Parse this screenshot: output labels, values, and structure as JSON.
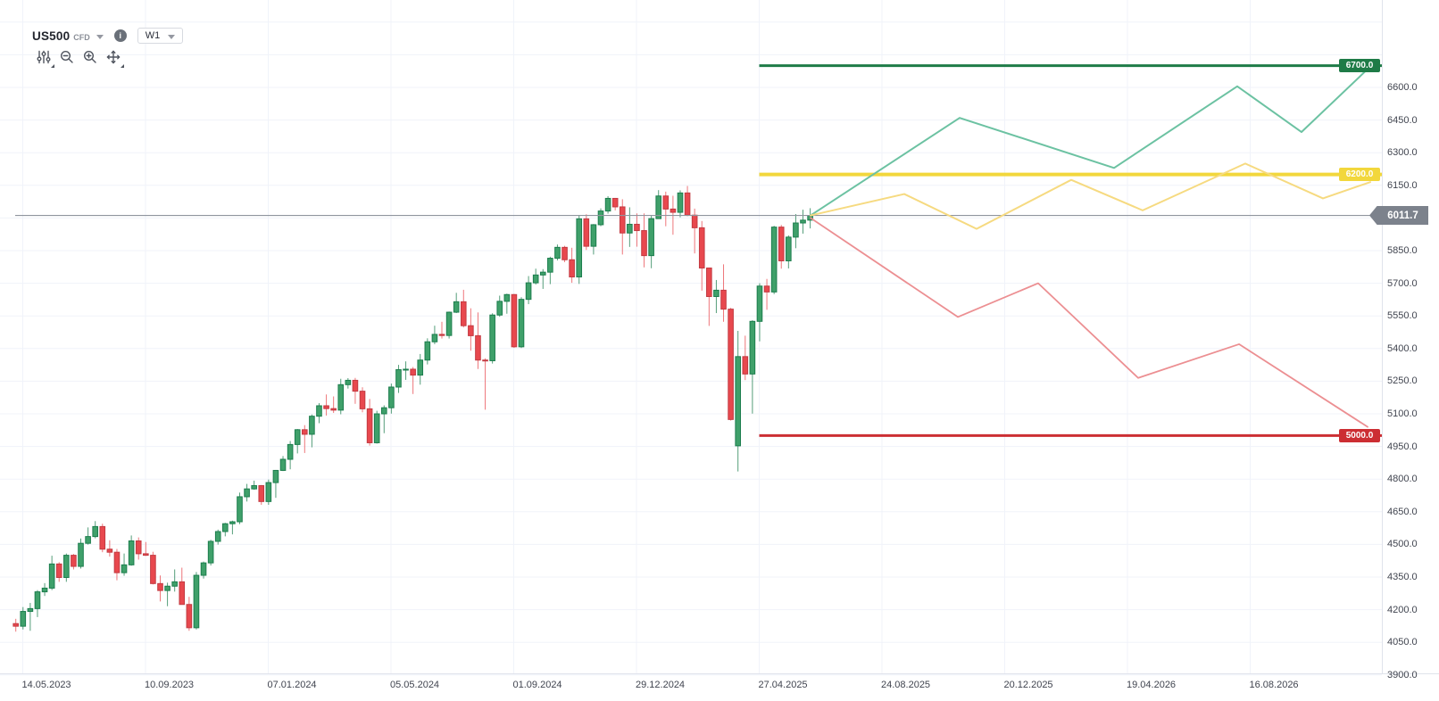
{
  "header": {
    "symbol": "US500",
    "market_type": "CFD",
    "info_icon": "i",
    "timeframe": "W1",
    "tools": [
      "chart-settings",
      "zoom-out",
      "zoom-in",
      "pan"
    ]
  },
  "chart_data": {
    "type": "candlestick",
    "symbol": "US500",
    "timeframe": "W1",
    "current_price": {
      "value": 6011.7,
      "label": "6011.7"
    },
    "price_axis": {
      "step": 150,
      "ticks": [
        6600,
        6450,
        6300,
        6150,
        5850,
        5700,
        5550,
        5400,
        5250,
        5100,
        4950,
        4800,
        4650,
        4500,
        4350,
        4200,
        4050,
        3900
      ]
    },
    "time_axis": {
      "labels": [
        "14.05.2023",
        "10.09.2023",
        "07.01.2024",
        "05.05.2024",
        "01.09.2024",
        "29.12.2024",
        "27.04.2025",
        "24.08.2025",
        "20.12.2025",
        "19.04.2026",
        "16.08.2026"
      ]
    },
    "horizontal_levels": [
      {
        "label": "6700.0",
        "price": 6700,
        "color": "#1e7b47",
        "thickness": 3
      },
      {
        "label": "6200.0",
        "price": 6200,
        "color": "#f2d73c",
        "thickness": 4
      },
      {
        "label": "5000.0",
        "price": 5000,
        "color": "#cc2e33",
        "thickness": 3
      }
    ],
    "projections": [
      {
        "name": "bullish-scenario",
        "color": "#6cc2a2",
        "width": 2,
        "points": [
          [
            908,
            6011.7
          ],
          [
            1075,
            6460
          ],
          [
            1248,
            6230
          ],
          [
            1386,
            6605
          ],
          [
            1458,
            6395
          ],
          [
            1540,
            6715
          ]
        ]
      },
      {
        "name": "sideways-scenario",
        "color": "#f6da80",
        "width": 2,
        "points": [
          [
            908,
            6011.7
          ],
          [
            1013,
            6110
          ],
          [
            1094,
            5950
          ],
          [
            1200,
            6175
          ],
          [
            1280,
            6035
          ],
          [
            1395,
            6250
          ],
          [
            1482,
            6090
          ],
          [
            1535,
            6165
          ]
        ]
      },
      {
        "name": "bearish-scenario",
        "color": "#ec8f92",
        "width": 1.8,
        "points": [
          [
            908,
            6000
          ],
          [
            1073,
            5545
          ],
          [
            1163,
            5700
          ],
          [
            1275,
            5265
          ],
          [
            1388,
            5420
          ],
          [
            1532,
            5040
          ]
        ]
      }
    ],
    "candles": {
      "start_week": "2023-05-08",
      "interval": "1W",
      "ohlc": [
        [
          4136,
          4158,
          4099,
          4124
        ],
        [
          4124,
          4212,
          4109,
          4192
        ],
        [
          4192,
          4231,
          4103,
          4205
        ],
        [
          4205,
          4290,
          4166,
          4282
        ],
        [
          4282,
          4322,
          4263,
          4299
        ],
        [
          4299,
          4448,
          4290,
          4410
        ],
        [
          4410,
          4418,
          4328,
          4348
        ],
        [
          4348,
          4458,
          4328,
          4450
        ],
        [
          4450,
          4456,
          4385,
          4399
        ],
        [
          4399,
          4527,
          4389,
          4505
        ],
        [
          4505,
          4578,
          4499,
          4536
        ],
        [
          4536,
          4607,
          4528,
          4582
        ],
        [
          4582,
          4595,
          4464,
          4478
        ],
        [
          4478,
          4519,
          4444,
          4464
        ],
        [
          4464,
          4479,
          4335,
          4370
        ],
        [
          4370,
          4458,
          4356,
          4406
        ],
        [
          4406,
          4541,
          4402,
          4516
        ],
        [
          4516,
          4532,
          4430,
          4457
        ],
        [
          4457,
          4511,
          4447,
          4450
        ],
        [
          4450,
          4466,
          4316,
          4320
        ],
        [
          4320,
          4357,
          4238,
          4288
        ],
        [
          4288,
          4324,
          4216,
          4308
        ],
        [
          4308,
          4385,
          4283,
          4328
        ],
        [
          4328,
          4393,
          4223,
          4224
        ],
        [
          4224,
          4259,
          4103,
          4117
        ],
        [
          4117,
          4373,
          4109,
          4358
        ],
        [
          4358,
          4421,
          4343,
          4415
        ],
        [
          4415,
          4521,
          4403,
          4514
        ],
        [
          4514,
          4568,
          4499,
          4559
        ],
        [
          4559,
          4599,
          4537,
          4595
        ],
        [
          4595,
          4609,
          4546,
          4604
        ],
        [
          4604,
          4738,
          4593,
          4719
        ],
        [
          4719,
          4778,
          4697,
          4755
        ],
        [
          4755,
          4793,
          4751,
          4770
        ],
        [
          4770,
          4773,
          4682,
          4697
        ],
        [
          4697,
          4798,
          4682,
          4784
        ],
        [
          4784,
          4842,
          4714,
          4840
        ],
        [
          4840,
          4906,
          4837,
          4891
        ],
        [
          4891,
          4975,
          4845,
          4959
        ],
        [
          4959,
          5030,
          4918,
          5027
        ],
        [
          5027,
          5048,
          4920,
          5006
        ],
        [
          5006,
          5097,
          4946,
          5089
        ],
        [
          5089,
          5149,
          5057,
          5137
        ],
        [
          5137,
          5189,
          5092,
          5124
        ],
        [
          5124,
          5180,
          5104,
          5117
        ],
        [
          5117,
          5261,
          5098,
          5234
        ],
        [
          5234,
          5264,
          5216,
          5254
        ],
        [
          5254,
          5265,
          5146,
          5204
        ],
        [
          5204,
          5222,
          5107,
          5123
        ],
        [
          5123,
          5168,
          4954,
          4967
        ],
        [
          4967,
          5114,
          4963,
          5100
        ],
        [
          5100,
          5139,
          5011,
          5128
        ],
        [
          5128,
          5239,
          5101,
          5223
        ],
        [
          5223,
          5325,
          5196,
          5303
        ],
        [
          5303,
          5341,
          5256,
          5305
        ],
        [
          5305,
          5315,
          5191,
          5278
        ],
        [
          5278,
          5375,
          5234,
          5347
        ],
        [
          5347,
          5447,
          5327,
          5431
        ],
        [
          5431,
          5505,
          5420,
          5465
        ],
        [
          5465,
          5523,
          5446,
          5460
        ],
        [
          5460,
          5570,
          5446,
          5567
        ],
        [
          5567,
          5656,
          5563,
          5615
        ],
        [
          5615,
          5670,
          5497,
          5505
        ],
        [
          5505,
          5585,
          5390,
          5459
        ],
        [
          5459,
          5566,
          5306,
          5347
        ],
        [
          5347,
          5355,
          5119,
          5344
        ],
        [
          5344,
          5562,
          5331,
          5554
        ],
        [
          5554,
          5643,
          5546,
          5617
        ],
        [
          5617,
          5652,
          5560,
          5648
        ],
        [
          5648,
          5651,
          5403,
          5408
        ],
        [
          5408,
          5636,
          5402,
          5626
        ],
        [
          5626,
          5733,
          5604,
          5702
        ],
        [
          5702,
          5767,
          5694,
          5738
        ],
        [
          5738,
          5765,
          5674,
          5751
        ],
        [
          5751,
          5822,
          5696,
          5815
        ],
        [
          5815,
          5878,
          5805,
          5865
        ],
        [
          5865,
          5872,
          5797,
          5808
        ],
        [
          5808,
          5863,
          5702,
          5729
        ],
        [
          5729,
          6012,
          5697,
          5996
        ],
        [
          5996,
          6017,
          5853,
          5870
        ],
        [
          5870,
          5972,
          5832,
          5969
        ],
        [
          5969,
          6044,
          5962,
          6032
        ],
        [
          6032,
          6100,
          6020,
          6090
        ],
        [
          6090,
          6092,
          6035,
          6051
        ],
        [
          6051,
          6086,
          5832,
          5931
        ],
        [
          5931,
          6049,
          5867,
          5971
        ],
        [
          5971,
          6021,
          5868,
          5942
        ],
        [
          5942,
          6021,
          5773,
          5827
        ],
        [
          5827,
          6014,
          5769,
          5997
        ],
        [
          5997,
          6128,
          5996,
          6101
        ],
        [
          6101,
          6121,
          5962,
          6041
        ],
        [
          6041,
          6102,
          5923,
          6026
        ],
        [
          6026,
          6127,
          6003,
          6115
        ],
        [
          6115,
          6147,
          6008,
          6013
        ],
        [
          6013,
          6043,
          5837,
          5955
        ],
        [
          5955,
          5986,
          5666,
          5770
        ],
        [
          5770,
          5772,
          5504,
          5639
        ],
        [
          5639,
          5715,
          5563,
          5668
        ],
        [
          5668,
          5787,
          5523,
          5581
        ],
        [
          5581,
          5587,
          5069,
          5074
        ],
        [
          4953,
          5481,
          4835,
          5363
        ],
        [
          5363,
          5459,
          5255,
          5283
        ],
        [
          5283,
          5530,
          5101,
          5525
        ],
        [
          5525,
          5700,
          5433,
          5687
        ],
        [
          5687,
          5720,
          5578,
          5660
        ],
        [
          5660,
          5964,
          5650,
          5958
        ],
        [
          5958,
          5968,
          5767,
          5803
        ],
        [
          5803,
          5920,
          5768,
          5912
        ],
        [
          5912,
          6018,
          5861,
          5977
        ],
        [
          5977,
          6038,
          5928,
          5990
        ],
        [
          5990,
          6045,
          5952,
          6011.7
        ]
      ]
    },
    "colors": {
      "background": "#ffffff",
      "grid": "#f0f3fa",
      "axis_border": "#e0e3eb",
      "axis_text": "#40444f",
      "candle_up_fill": "#3fa06a",
      "candle_up_stroke": "#1c7d4d",
      "candle_down_fill": "#e8484e",
      "candle_down_stroke": "#c23a41",
      "current_price_line": "#8f959e",
      "current_price_label_bg": "#7c828c"
    }
  }
}
